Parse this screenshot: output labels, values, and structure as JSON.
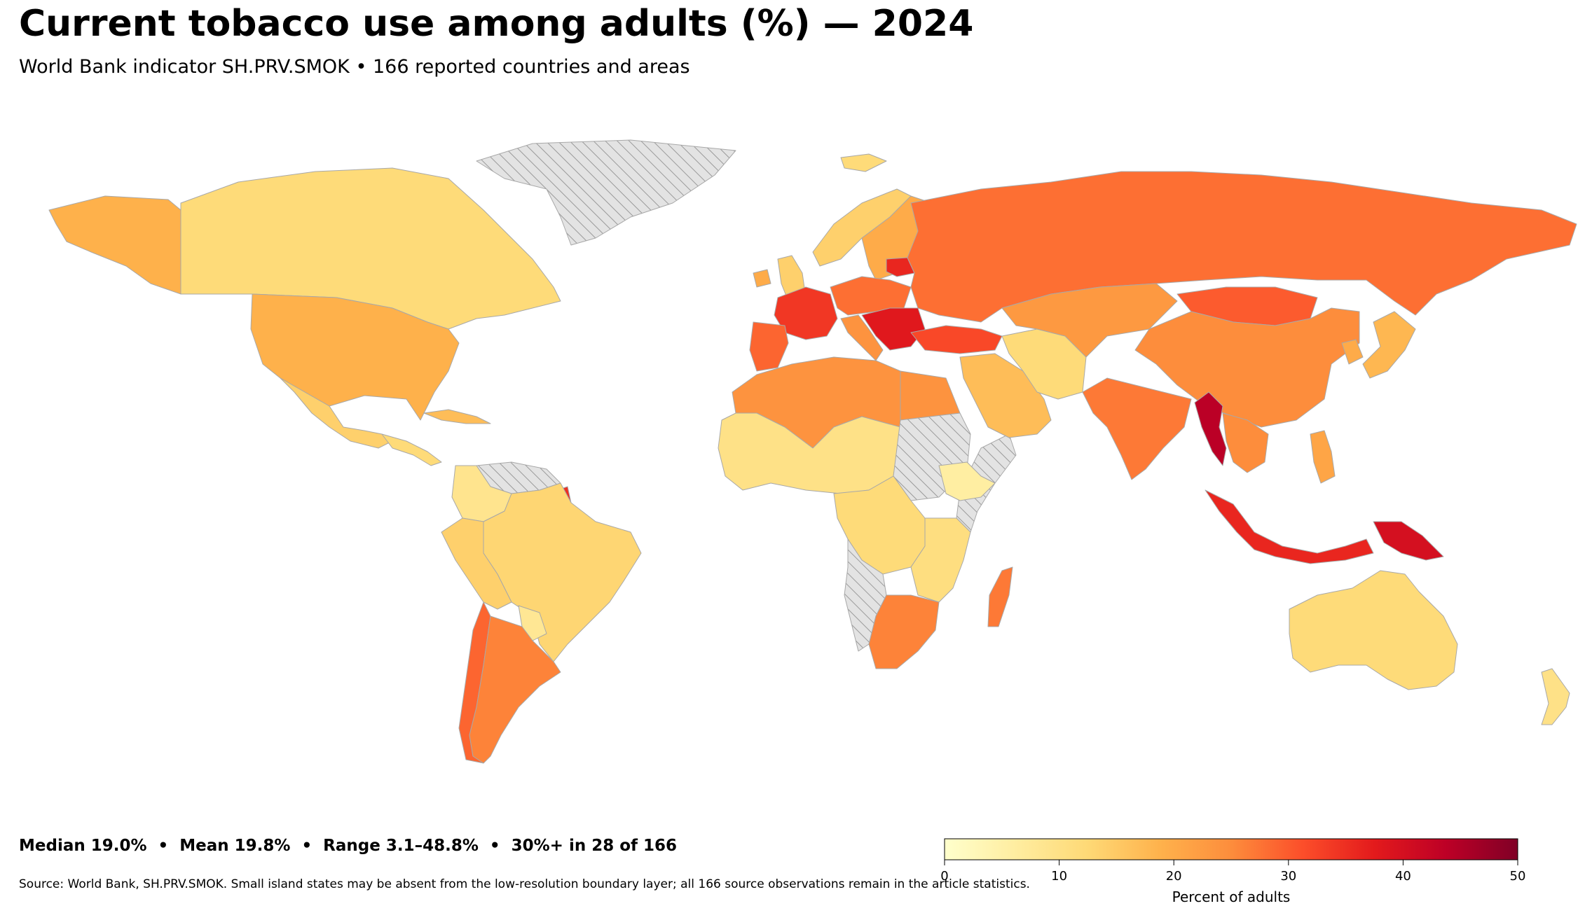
{
  "header": {
    "title": "Current tobacco use among adults (%) — 2024",
    "subtitle": "World Bank indicator SH.PRV.SMOK • 166 reported countries and areas"
  },
  "stats_line": "Median 19.0%  •  Mean 19.8%  •  Range 3.1–48.8%  •  30%+ in 28 of 166",
  "source_note": "Source: World Bank, SH.PRV.SMOK. Small island states may be absent from the low-resolution boundary layer; all 166 source observations remain in the article statistics.",
  "legend": {
    "label": "Percent of adults",
    "min": 0,
    "max": 50,
    "ticks": [
      "0",
      "10",
      "20",
      "30",
      "40",
      "50"
    ],
    "colors": [
      "#ffffcc",
      "#ffeda0",
      "#fed976",
      "#feb24c",
      "#fd8d3c",
      "#fc4e2a",
      "#e31a1c",
      "#bd0026",
      "#800026"
    ]
  },
  "map_style": {
    "no_data_fill": "#e3e3e3",
    "no_data_hatch": "#9a9a9a",
    "border_color": "#a8a8a8"
  },
  "regions": [
    {
      "id": "greenland",
      "value": null
    },
    {
      "id": "alaska",
      "value": 19
    },
    {
      "id": "canada",
      "value": 12
    },
    {
      "id": "usa",
      "value": 19
    },
    {
      "id": "mexico",
      "value": 14
    },
    {
      "id": "central-america",
      "value": 12
    },
    {
      "id": "cuba",
      "value": 17
    },
    {
      "id": "venezuela-guyana",
      "value": null
    },
    {
      "id": "colombia",
      "value": 9
    },
    {
      "id": "brazil",
      "value": 13
    },
    {
      "id": "peru-bolivia",
      "value": 14
    },
    {
      "id": "paraguay",
      "value": 8
    },
    {
      "id": "chile",
      "value": 29
    },
    {
      "id": "argentina",
      "value": 26
    },
    {
      "id": "french-guiana",
      "value": 35
    },
    {
      "id": "iceland",
      "value": 12
    },
    {
      "id": "norway",
      "value": 14
    },
    {
      "id": "sweden-finland",
      "value": 20
    },
    {
      "id": "uk",
      "value": 14
    },
    {
      "id": "ireland",
      "value": 20
    },
    {
      "id": "france",
      "value": 34
    },
    {
      "id": "iberia",
      "value": 29
    },
    {
      "id": "central-europe",
      "value": 28
    },
    {
      "id": "italy",
      "value": 24
    },
    {
      "id": "balkans",
      "value": 38
    },
    {
      "id": "belarus",
      "value": 36
    },
    {
      "id": "russia",
      "value": 28
    },
    {
      "id": "turkey",
      "value": 32
    },
    {
      "id": "north-africa",
      "value": 24
    },
    {
      "id": "egypt",
      "value": 24
    },
    {
      "id": "sahel",
      "value": 10
    },
    {
      "id": "sudan",
      "value": null
    },
    {
      "id": "horn-of-africa",
      "value": null
    },
    {
      "id": "ethiopia",
      "value": 6
    },
    {
      "id": "central-africa",
      "value": 12
    },
    {
      "id": "southern-africa-nd",
      "value": null
    },
    {
      "id": "south-africa",
      "value": 26
    },
    {
      "id": "madagascar",
      "value": 27
    },
    {
      "id": "east-africa",
      "value": 11
    },
    {
      "id": "arabia",
      "value": 17
    },
    {
      "id": "iran",
      "value": 12
    },
    {
      "id": "central-asia",
      "value": 23
    },
    {
      "id": "mongolia",
      "value": 30
    },
    {
      "id": "china",
      "value": 25
    },
    {
      "id": "india",
      "value": 27
    },
    {
      "id": "myanmar",
      "value": 44
    },
    {
      "id": "southeast-asia",
      "value": 25
    },
    {
      "id": "japan",
      "value": 18
    },
    {
      "id": "korea",
      "value": 20
    },
    {
      "id": "philippines",
      "value": 21
    },
    {
      "id": "indonesia",
      "value": 36
    },
    {
      "id": "papua-new-guinea",
      "value": 40
    },
    {
      "id": "australia",
      "value": 12
    },
    {
      "id": "new-zealand",
      "value": 10
    }
  ]
}
